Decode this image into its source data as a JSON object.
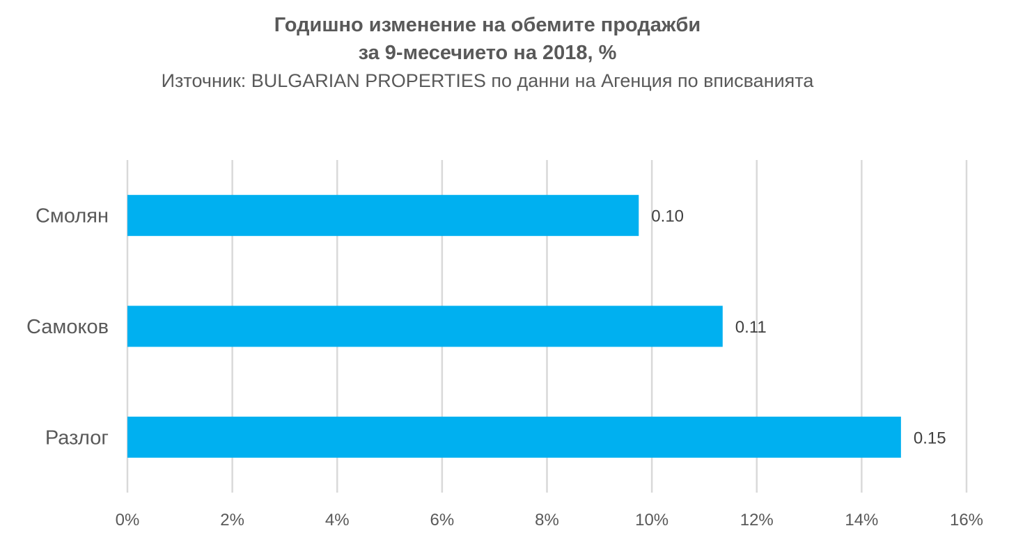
{
  "chart_data": {
    "type": "bar",
    "orientation": "horizontal",
    "title_line1": "Годишно изменение на обемите продажби",
    "title_line2": "за 9-месечието на 2018, %",
    "subtitle": "Източник: BULGARIAN PROPERTIES по данни на Агенция по вписванията",
    "categories": [
      "Смолян",
      "Самоков",
      "Разлог"
    ],
    "values": [
      9.75,
      11.35,
      14.75
    ],
    "data_labels": [
      "0.10",
      "0.11",
      "0.15"
    ],
    "x_ticks": [
      "0%",
      "2%",
      "4%",
      "6%",
      "8%",
      "10%",
      "12%",
      "14%",
      "16%"
    ],
    "xlim": [
      0,
      16
    ],
    "grid": "vertical",
    "legend": "none",
    "bar_color": "#00B0F0",
    "grid_color": "#D9D9D9"
  }
}
